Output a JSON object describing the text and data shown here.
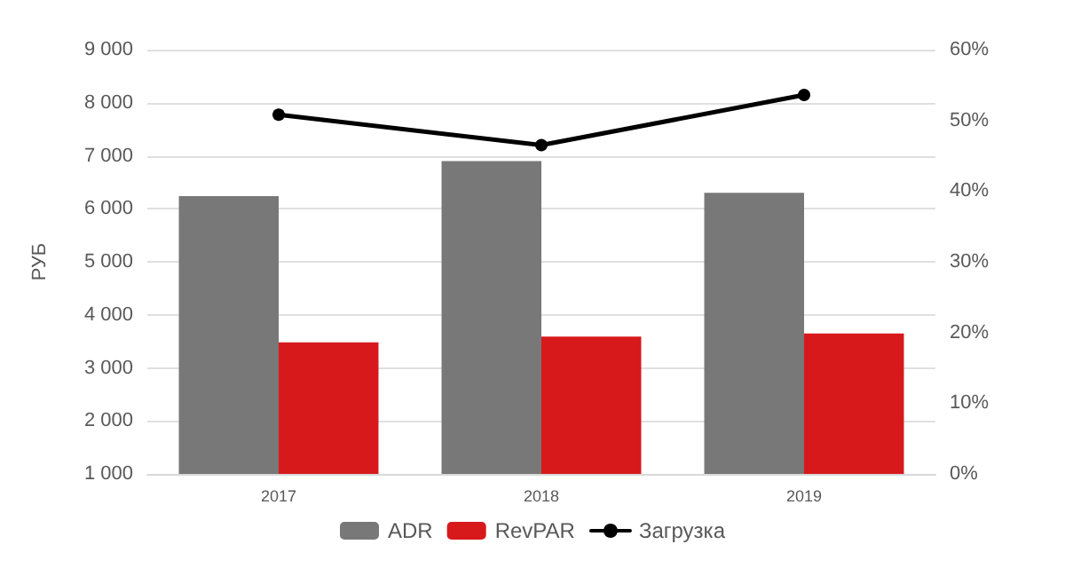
{
  "chart_data": {
    "type": "bar",
    "ylabel": "РУБ",
    "categories": [
      "2017",
      "2018",
      "2019"
    ],
    "series": [
      {
        "name": "ADR",
        "color": "#787878",
        "values": [
          6240,
          6900,
          6300
        ]
      },
      {
        "name": "RevPAR",
        "color": "#d7191c",
        "values": [
          3480,
          3590,
          3650
        ]
      },
      {
        "name": "Загрузка",
        "type": "line",
        "axis": "y2",
        "color": "#000000",
        "values": [
          50.8,
          46.5,
          53.6
        ]
      }
    ],
    "ylim": [
      1000,
      9000
    ],
    "yticks": [
      {
        "value": 1000,
        "label": "1 000"
      },
      {
        "value": 2000,
        "label": "2 000"
      },
      {
        "value": 3000,
        "label": "3 000"
      },
      {
        "value": 4000,
        "label": "4 000"
      },
      {
        "value": 5000,
        "label": "5 000"
      },
      {
        "value": 6000,
        "label": "6 000"
      },
      {
        "value": 7000,
        "label": "7 000"
      },
      {
        "value": 8000,
        "label": "8 000"
      },
      {
        "value": 9000,
        "label": "9 000"
      }
    ],
    "y2lim": [
      0,
      60
    ],
    "y2ticks": [
      {
        "value": 0,
        "label": "0%"
      },
      {
        "value": 10,
        "label": "10%"
      },
      {
        "value": 20,
        "label": "20%"
      },
      {
        "value": 30,
        "label": "30%"
      },
      {
        "value": 40,
        "label": "40%"
      },
      {
        "value": 50,
        "label": "50%"
      },
      {
        "value": 60,
        "label": "60%"
      }
    ],
    "grid": "y",
    "legend": "bottom",
    "marker": "circle",
    "line_style": "solid"
  }
}
